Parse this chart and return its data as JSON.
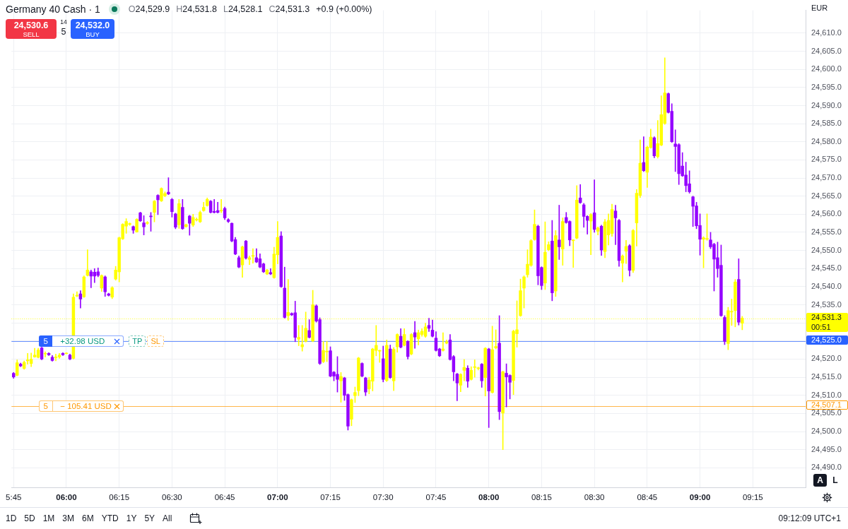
{
  "chart_data": {
    "type": "candlestick",
    "title": "Germany 40 Cash · 1",
    "annotations": [
      "O24,529.9",
      "H24,531.8",
      "L24,528.1",
      "C24,531.3",
      "+0.9 (+0.00%)",
      "24,530.6",
      "SELL",
      "14",
      "5",
      "24,532.0",
      "BUY",
      "EUR",
      {
        "text": "5",
        "y": 24525.0
      },
      {
        "text": "+32.98 USD",
        "y": 24525.0
      },
      {
        "text": "TP",
        "y": 24525.0
      },
      {
        "text": "SL",
        "y": 24525.0
      },
      {
        "text": "5",
        "y": 24507.1
      },
      {
        "text": "− 105.41 USD",
        "y": 24507.1
      },
      "00:51",
      "1D",
      "5D",
      "1M",
      "3M",
      "6M",
      "YTD",
      "1Y",
      "5Y",
      "All",
      "09:12:09 UTC+1",
      "A",
      "L"
    ],
    "x": [
      5.75,
      5.7667,
      5.7833,
      5.8,
      5.8167,
      5.8333,
      5.85,
      5.8667,
      5.8833,
      5.9,
      5.9167,
      5.9333,
      5.95,
      5.9667,
      5.9833,
      6,
      6.0167,
      6.0333,
      6.05,
      6.0667,
      6.0833,
      6.1,
      6.1167,
      6.1333,
      6.15,
      6.1667,
      6.1833,
      6.2,
      6.2167,
      6.2333,
      6.25,
      6.2667,
      6.2833,
      6.3,
      6.3167,
      6.3333,
      6.35,
      6.3667,
      6.3833,
      6.4,
      6.4167,
      6.4333,
      6.45,
      6.4667,
      6.4833,
      6.5,
      6.5167,
      6.5333,
      6.55,
      6.5667,
      6.5833,
      6.6,
      6.6167,
      6.6333,
      6.65,
      6.6667,
      6.6833,
      6.7,
      6.7167,
      6.7333,
      6.75,
      6.7667,
      6.7833,
      6.8,
      6.8167,
      6.8333,
      6.85,
      6.8667,
      6.8833,
      6.9,
      6.9167,
      6.9333,
      6.95,
      6.9667,
      6.9833,
      7,
      7.0167,
      7.0333,
      7.05,
      7.0667,
      7.0833,
      7.1,
      7.1167,
      7.1333,
      7.15,
      7.1667,
      7.1833,
      7.2,
      7.2167,
      7.2333,
      7.25,
      7.2667,
      7.2833,
      7.3,
      7.3167,
      7.3333,
      7.35,
      7.3667,
      7.3833,
      7.4,
      7.4167,
      7.4333,
      7.45,
      7.4667,
      7.4833,
      7.5,
      7.5167,
      7.5333,
      7.55,
      7.5667,
      7.5833,
      7.6,
      7.6167,
      7.6333,
      7.65,
      7.6667,
      7.6833,
      7.7,
      7.7167,
      7.7333,
      7.75,
      7.7667,
      7.7833,
      7.8,
      7.8167,
      7.8333,
      7.85,
      7.8667,
      7.8833,
      7.9,
      7.9167,
      7.9333,
      7.95,
      7.9667,
      7.9833,
      8,
      8.0167,
      8.0333,
      8.05,
      8.0667,
      8.0833,
      8.1,
      8.1167,
      8.1333,
      8.15,
      8.1667,
      8.1833,
      8.2,
      8.2167,
      8.2333,
      8.25,
      8.2667,
      8.2833,
      8.3,
      8.3167,
      8.3333,
      8.35,
      8.3667,
      8.3833,
      8.4,
      8.4167,
      8.4333,
      8.45,
      8.4667,
      8.4833,
      8.5,
      8.5167,
      8.5333,
      8.55,
      8.5667,
      8.5833,
      8.6,
      8.6167,
      8.6333,
      8.65,
      8.6667,
      8.6833,
      8.7,
      8.7167,
      8.7333,
      8.75,
      8.7667,
      8.7833,
      8.8,
      8.8167,
      8.8333,
      8.85,
      8.8667,
      8.8833,
      8.9,
      8.9167,
      8.9333,
      8.95,
      8.9667,
      8.9833,
      9,
      9.0167,
      9.0333,
      9.05,
      9.0667,
      9.0833,
      9.1,
      9.1167,
      9.1333,
      9.15,
      9.1667,
      9.1833,
      9.2
    ],
    "ohlc": [
      [
        24516.1,
        24516.3,
        24514.7,
        24515.1
      ],
      [
        24515.5,
        24519.8,
        24515.4,
        24519.0
      ],
      [
        24518.6,
        24518.9,
        24517.9,
        24518.1
      ],
      [
        24517.4,
        24519.5,
        24517.2,
        24519.1
      ],
      [
        24519.5,
        24521.6,
        24518.6,
        24519.8
      ],
      [
        24518.8,
        24521.7,
        24517.9,
        24520.0
      ],
      [
        24520.6,
        24523.0,
        24520.5,
        24521.1
      ],
      [
        24520.5,
        24523.0,
        24520.3,
        24522.5
      ],
      [
        24523.1,
        24523.3,
        24519.8,
        24520.0
      ],
      [
        24521.4,
        24522.0,
        24520.6,
        24521.5
      ],
      [
        24521.6,
        24521.8,
        24521.0,
        24521.2
      ],
      [
        24520.5,
        24521.0,
        24519.4,
        24519.6
      ],
      [
        24520.4,
        24521.4,
        24519.5,
        24520.5
      ],
      [
        24520.6,
        24521.6,
        24520.2,
        24521.1
      ],
      [
        24521.6,
        24521.8,
        24521.0,
        24521.2
      ],
      [
        24521.5,
        24521.8,
        24521.4,
        24521.6
      ],
      [
        24521.1,
        24521.4,
        24519.8,
        24520.0
      ],
      [
        24520.2,
        24538.0,
        24520.0,
        24537.1
      ],
      [
        24537.4,
        24538.6,
        24537.2,
        24537.6
      ],
      [
        24538.0,
        24538.9,
        24534.1,
        24536.6
      ],
      [
        24537.2,
        24543.0,
        24537.0,
        24542.7
      ],
      [
        24543.1,
        24550.2,
        24542.9,
        24544.6
      ],
      [
        24544.1,
        24544.6,
        24539.7,
        24542.9
      ],
      [
        24544.0,
        24545.0,
        24541.1,
        24542.9
      ],
      [
        24544.1,
        24545.2,
        24542.7,
        24543.1
      ],
      [
        24539.6,
        24543.3,
        24538.7,
        24543.1
      ],
      [
        24542.7,
        24543.0,
        24537.3,
        24538.6
      ],
      [
        24538.0,
        24538.2,
        24537.4,
        24537.6
      ],
      [
        24537.1,
        24540.0,
        24536.7,
        24539.7
      ],
      [
        24542.1,
        24545.6,
        24541.8,
        24544.6
      ],
      [
        24544.1,
        24553.7,
        24541.3,
        24553.5
      ],
      [
        24553.2,
        24557.4,
        24553.0,
        24557.2
      ],
      [
        24556.7,
        24558.8,
        24554.7,
        24558.0
      ],
      [
        24557.2,
        24557.6,
        24556.9,
        24557.3
      ],
      [
        24556.6,
        24556.8,
        24554.7,
        24555.6
      ],
      [
        24555.1,
        24558.8,
        24555.0,
        24558.6
      ],
      [
        24560.4,
        24560.6,
        24558.0,
        24558.2
      ],
      [
        24557.6,
        24559.6,
        24554.3,
        24556.5
      ],
      [
        24557.5,
        24558.0,
        24557.2,
        24557.6
      ],
      [
        24559.5,
        24560.5,
        24555.3,
        24559.3
      ],
      [
        24560.5,
        24563.8,
        24557.9,
        24563.6
      ],
      [
        24565.2,
        24565.4,
        24559.9,
        24564.0
      ],
      [
        24563.7,
        24567.3,
        24563.5,
        24567.1
      ],
      [
        24565.1,
        24566.2,
        24564.8,
        24565.7
      ],
      [
        24566.1,
        24570.1,
        24565.4,
        24565.6
      ],
      [
        24564.1,
        24564.4,
        24559.2,
        24560.7
      ],
      [
        24560.1,
        24560.3,
        24556.0,
        24556.4
      ],
      [
        24557.1,
        24564.1,
        24556.1,
        24562.9
      ],
      [
        24561.9,
        24564.1,
        24555.8,
        24556.0
      ],
      [
        24556.6,
        24557.3,
        24556.4,
        24557.1
      ],
      [
        24559.5,
        24559.7,
        24554.2,
        24557.5
      ],
      [
        24557.0,
        24560.0,
        24556.6,
        24559.1
      ],
      [
        24558.4,
        24559.0,
        24558.1,
        24558.6
      ],
      [
        24557.9,
        24560.9,
        24557.7,
        24560.5
      ],
      [
        24561.0,
        24563.3,
        24560.8,
        24561.9
      ],
      [
        24562.4,
        24564.5,
        24562.2,
        24564.1
      ],
      [
        24563.6,
        24563.8,
        24560.3,
        24560.5
      ],
      [
        24560.8,
        24564.1,
        24560.3,
        24560.5
      ],
      [
        24561.0,
        24563.3,
        24560.3,
        24560.5
      ],
      [
        24560.9,
        24564.1,
        24560.4,
        24561.0
      ],
      [
        24561.6,
        24562.0,
        24558.5,
        24559.0
      ],
      [
        24558.5,
        24558.8,
        24557.7,
        24558.0
      ],
      [
        24557.5,
        24557.6,
        24552.4,
        24552.6
      ],
      [
        24553.0,
        24553.6,
        24548.8,
        24549.0
      ],
      [
        24548.0,
        24548.5,
        24545.2,
        24545.4
      ],
      [
        24546.0,
        24551.2,
        24542.6,
        24551.0
      ],
      [
        24552.6,
        24552.8,
        24547.6,
        24547.9
      ],
      [
        24547.5,
        24548.5,
        24546.1,
        24548.0
      ],
      [
        24548.4,
        24550.5,
        24546.5,
        24548.5
      ],
      [
        24548.0,
        24550.5,
        24546.6,
        24546.8
      ],
      [
        24547.7,
        24549.1,
        24545.2,
        24545.4
      ],
      [
        24546.3,
        24546.5,
        24543.9,
        24544.1
      ],
      [
        24543.5,
        24544.8,
        24543.3,
        24544.6
      ],
      [
        24543.9,
        24545.0,
        24543.3,
        24543.5
      ],
      [
        24542.5,
        24550.9,
        24542.3,
        24549.0
      ],
      [
        24548.8,
        24558.0,
        24546.3,
        24553.6
      ],
      [
        24554.0,
        24555.2,
        24539.8,
        24540.0
      ],
      [
        24539.6,
        24545.4,
        24531.3,
        24531.5
      ],
      [
        24532.0,
        24542.0,
        24530.7,
        24532.9
      ],
      [
        24532.6,
        24532.8,
        24532.0,
        24532.2
      ],
      [
        24532.8,
        24536.0,
        24524.8,
        24526.0
      ],
      [
        24525.5,
        24529.3,
        24523.7,
        24526.0
      ],
      [
        24523.4,
        24529.3,
        24522.2,
        24524.0
      ],
      [
        24524.9,
        24533.0,
        24524.7,
        24528.5
      ],
      [
        24527.9,
        24530.9,
        24525.8,
        24526.0
      ],
      [
        24525.0,
        24539.0,
        24524.8,
        24535.0
      ],
      [
        24534.7,
        24535.0,
        24530.2,
        24530.5
      ],
      [
        24530.9,
        24531.4,
        24518.5,
        24518.8
      ],
      [
        24519.3,
        24524.9,
        24519.0,
        24522.4
      ],
      [
        24522.0,
        24524.9,
        24519.3,
        24522.1
      ],
      [
        24522.3,
        24523.4,
        24515.1,
        24515.3
      ],
      [
        24516.4,
        24516.6,
        24514.0,
        24515.3
      ],
      [
        24515.8,
        24520.7,
        24510.9,
        24514.4
      ],
      [
        24514.0,
        24516.3,
        24508.1,
        24515.2
      ],
      [
        24514.8,
        24515.0,
        24508.6,
        24510.0
      ],
      [
        24510.2,
        24510.4,
        24500.4,
        24501.5
      ],
      [
        24503.4,
        24509.0,
        24501.6,
        24508.8
      ],
      [
        24509.9,
        24512.3,
        24508.0,
        24510.8
      ],
      [
        24511.3,
        24520.5,
        24509.9,
        24520.3
      ],
      [
        24518.8,
        24519.0,
        24515.1,
        24515.3
      ],
      [
        24514.8,
        24515.0,
        24509.9,
        24510.9
      ],
      [
        24511.8,
        24515.0,
        24510.4,
        24514.2
      ],
      [
        24513.9,
        24523.0,
        24511.2,
        24522.8
      ],
      [
        24522.4,
        24529.3,
        24520.9,
        24523.8
      ],
      [
        24522.2,
        24522.5,
        24519.1,
        24522.3
      ],
      [
        24520.1,
        24523.6,
        24513.7,
        24514.4
      ],
      [
        24514.1,
        24525.3,
        24513.8,
        24523.8
      ],
      [
        24522.8,
        24523.9,
        24514.7,
        24514.9
      ],
      [
        24514.0,
        24523.2,
        24511.3,
        24522.7
      ],
      [
        24523.4,
        24527.0,
        24521.9,
        24526.8
      ],
      [
        24526.3,
        24528.4,
        24523.1,
        24523.3
      ],
      [
        24523.8,
        24528.4,
        24523.6,
        24526.8
      ],
      [
        24524.9,
        24525.1,
        24520.0,
        24520.7
      ],
      [
        24521.4,
        24527.1,
        24521.2,
        24526.8
      ],
      [
        24527.3,
        24530.4,
        24523.0,
        24526.1
      ],
      [
        24525.6,
        24528.0,
        24523.9,
        24527.3
      ],
      [
        24526.8,
        24528.4,
        24526.3,
        24527.7
      ],
      [
        24526.3,
        24529.9,
        24526.0,
        24528.9
      ],
      [
        24529.3,
        24531.3,
        24527.6,
        24528.5
      ],
      [
        24528.0,
        24530.8,
        24526.1,
        24526.3
      ],
      [
        24525.8,
        24527.6,
        24522.2,
        24522.4
      ],
      [
        24522.8,
        24523.0,
        24520.7,
        24520.9
      ],
      [
        24522.4,
        24527.3,
        24522.2,
        24522.8
      ],
      [
        24524.4,
        24525.3,
        24524.2,
        24524.8
      ],
      [
        24525.3,
        24526.8,
        24519.7,
        24519.9
      ],
      [
        24520.7,
        24521.0,
        24514.0,
        24516.5
      ],
      [
        24515.9,
        24516.1,
        24508.5,
        24513.4
      ],
      [
        24512.8,
        24516.0,
        24511.0,
        24515.8
      ],
      [
        24516.9,
        24519.9,
        24514.0,
        24517.7
      ],
      [
        24517.5,
        24518.2,
        24512.2,
        24513.9
      ],
      [
        24514.4,
        24517.9,
        24514.2,
        24516.9
      ],
      [
        24517.7,
        24519.8,
        24515.0,
        24517.8
      ],
      [
        24517.4,
        24517.8,
        24517.0,
        24517.5
      ],
      [
        24518.6,
        24518.8,
        24512.2,
        24514.0
      ],
      [
        24514.9,
        24523.2,
        24509.8,
        24523.0
      ],
      [
        24522.8,
        24523.0,
        24501.1,
        24511.2
      ],
      [
        24510.8,
        24529.1,
        24510.6,
        24522.6
      ],
      [
        24523.1,
        24528.1,
        24522.8,
        24523.5
      ],
      [
        24524.4,
        24532.0,
        24503.3,
        24505.5
      ],
      [
        24505.1,
        24516.7,
        24495.0,
        24516.5
      ],
      [
        24516.1,
        24518.7,
        24506.8,
        24515.1
      ],
      [
        24515.5,
        24515.7,
        24509.0,
        24513.6
      ],
      [
        24514.1,
        24528.0,
        24510.2,
        24527.7
      ],
      [
        24527.0,
        24536.1,
        24523.3,
        24528.1
      ],
      [
        24532.0,
        24542.1,
        24531.8,
        24538.9
      ],
      [
        24539.6,
        24543.0,
        24534.1,
        24542.7
      ],
      [
        24543.3,
        24550.2,
        24542.6,
        24546.2
      ],
      [
        24545.9,
        24553.0,
        24545.6,
        24552.7
      ],
      [
        24553.0,
        24561.2,
        24552.8,
        24557.2
      ],
      [
        24556.7,
        24557.0,
        24540.5,
        24543.0
      ],
      [
        24545.3,
        24545.5,
        24539.2,
        24540.3
      ],
      [
        24541.0,
        24557.9,
        24539.2,
        24549.5
      ],
      [
        24550.2,
        24552.4,
        24549.9,
        24551.6
      ],
      [
        24552.6,
        24558.3,
        24536.1,
        24538.3
      ],
      [
        24538.8,
        24555.5,
        24537.3,
        24554.1
      ],
      [
        24552.9,
        24562.5,
        24547.5,
        24551.0
      ],
      [
        24550.4,
        24559.0,
        24545.9,
        24558.0
      ],
      [
        24559.1,
        24560.5,
        24557.5,
        24557.7
      ],
      [
        24558.0,
        24558.2,
        24551.3,
        24552.9
      ],
      [
        24552.7,
        24553.0,
        24545.3,
        24552.8
      ],
      [
        24553.4,
        24567.9,
        24553.2,
        24563.9
      ],
      [
        24564.5,
        24568.2,
        24563.0,
        24563.2
      ],
      [
        24562.6,
        24563.0,
        24556.4,
        24559.4
      ],
      [
        24559.4,
        24559.6,
        24554.5,
        24558.3
      ],
      [
        24558.1,
        24560.2,
        24548.8,
        24559.9
      ],
      [
        24560.4,
        24569.5,
        24555.0,
        24555.8
      ],
      [
        24555.3,
        24556.5,
        24554.3,
        24556.2
      ],
      [
        24556.7,
        24557.0,
        24548.6,
        24550.1
      ],
      [
        24549.7,
        24558.6,
        24548.0,
        24557.9
      ],
      [
        24554.3,
        24560.1,
        24551.5,
        24558.3
      ],
      [
        24554.7,
        24562.8,
        24553.9,
        24561.3
      ],
      [
        24560.9,
        24562.5,
        24551.6,
        24559.0
      ],
      [
        24558.3,
        24558.6,
        24545.6,
        24547.2
      ],
      [
        24546.5,
        24548.8,
        24541.3,
        24548.5
      ],
      [
        24549.8,
        24552.8,
        24546.4,
        24551.1
      ],
      [
        24551.3,
        24551.6,
        24542.9,
        24544.5
      ],
      [
        24544.5,
        24555.8,
        24543.9,
        24555.5
      ],
      [
        24557.6,
        24566.8,
        24551.2,
        24565.8
      ],
      [
        24565.2,
        24580.5,
        24564.6,
        24574.1
      ],
      [
        24574.3,
        24581.4,
        24571.8,
        24572.0
      ],
      [
        24571.6,
        24578.8,
        24567.4,
        24578.5
      ],
      [
        24578.4,
        24583.5,
        24578.2,
        24581.3
      ],
      [
        24581.1,
        24581.4,
        24575.6,
        24576.1
      ],
      [
        24575.9,
        24585.9,
        24575.5,
        24579.5
      ],
      [
        24579.1,
        24592.7,
        24578.9,
        24587.5
      ],
      [
        24585.1,
        24603.2,
        24584.8,
        24593.5
      ],
      [
        24593.3,
        24593.5,
        24587.9,
        24588.1
      ],
      [
        24588.4,
        24590.5,
        24579.8,
        24580.0
      ],
      [
        24579.4,
        24583.3,
        24571.8,
        24578.7
      ],
      [
        24579.2,
        24579.5,
        24568.2,
        24571.2
      ],
      [
        24573.3,
        24577.0,
        24570.4,
        24570.6
      ],
      [
        24570.8,
        24574.4,
        24566.2,
        24567.9
      ],
      [
        24568.4,
        24572.0,
        24565.8,
        24566.2
      ],
      [
        24564.8,
        24565.0,
        24556.6,
        24562.2
      ],
      [
        24562.3,
        24563.3,
        24556.0,
        24556.8
      ],
      [
        24556.9,
        24560.1,
        24548.7,
        24553.1
      ],
      [
        24553.1,
        24553.8,
        24545.2,
        24553.5
      ],
      [
        24553.1,
        24560.1,
        24552.8,
        24553.2
      ],
      [
        24552.9,
        24555.0,
        24550.5,
        24551.0
      ],
      [
        24551.7,
        24552.0,
        24538.8,
        24547.6
      ],
      [
        24548.0,
        24552.3,
        24542.6,
        24545.0
      ],
      [
        24545.9,
        24551.5,
        24531.8,
        24532.0
      ],
      [
        24531.5,
        24532.0,
        24524.0,
        24524.9
      ],
      [
        24524.3,
        24534.3,
        24522.6,
        24533.4
      ],
      [
        24533.0,
        24536.6,
        24529.3,
        24533.1
      ],
      [
        24533.4,
        24542.0,
        24528.9,
        24541.3
      ],
      [
        24542.0,
        24547.7,
        24529.4,
        24530.2
      ],
      [
        24529.9,
        24531.8,
        24528.1,
        24531.3
      ]
    ],
    "colors": [
      "#9400ff",
      "#ffff00",
      "#9400ff",
      "#ffff00",
      "#ffff00",
      "#ffff00",
      "#ffff00",
      "#ffff00",
      "#9400ff",
      "#ffff00",
      "#9400ff",
      "#9400ff",
      "#ffff00",
      "#ffff00",
      "#9400ff",
      "#ffff00",
      "#9400ff",
      "#ffff00",
      "#ffff00",
      "#9400ff",
      "#ffff00",
      "#ffff00",
      "#9400ff",
      "#9400ff",
      "#9400ff",
      "#ffff00",
      "#9400ff",
      "#9400ff",
      "#ffff00",
      "#ffff00",
      "#ffff00",
      "#ffff00",
      "#ffff00",
      "#ffff00",
      "#9400ff",
      "#ffff00",
      "#9400ff",
      "#9400ff",
      "#ffff00",
      "#9400ff",
      "#ffff00",
      "#9400ff",
      "#ffff00",
      "#ffff00",
      "#9400ff",
      "#9400ff",
      "#9400ff",
      "#ffff00",
      "#9400ff",
      "#ffff00",
      "#9400ff",
      "#ffff00",
      "#ffff00",
      "#ffff00",
      "#ffff00",
      "#ffff00",
      "#9400ff",
      "#9400ff",
      "#9400ff",
      "#ffff00",
      "#9400ff",
      "#9400ff",
      "#9400ff",
      "#9400ff",
      "#9400ff",
      "#ffff00",
      "#9400ff",
      "#ffff00",
      "#ffff00",
      "#9400ff",
      "#9400ff",
      "#9400ff",
      "#ffff00",
      "#9400ff",
      "#ffff00",
      "#ffff00",
      "#9400ff",
      "#9400ff",
      "#ffff00",
      "#9400ff",
      "#9400ff",
      "#ffff00",
      "#ffff00",
      "#ffff00",
      "#9400ff",
      "#ffff00",
      "#9400ff",
      "#9400ff",
      "#ffff00",
      "#ffff00",
      "#9400ff",
      "#9400ff",
      "#9400ff",
      "#ffff00",
      "#9400ff",
      "#9400ff",
      "#ffff00",
      "#ffff00",
      "#ffff00",
      "#9400ff",
      "#9400ff",
      "#ffff00",
      "#ffff00",
      "#ffff00",
      "#ffff00",
      "#9400ff",
      "#ffff00",
      "#9400ff",
      "#ffff00",
      "#ffff00",
      "#9400ff",
      "#ffff00",
      "#9400ff",
      "#ffff00",
      "#9400ff",
      "#ffff00",
      "#ffff00",
      "#ffff00",
      "#9400ff",
      "#9400ff",
      "#9400ff",
      "#9400ff",
      "#ffff00",
      "#ffff00",
      "#9400ff",
      "#9400ff",
      "#9400ff",
      "#ffff00",
      "#ffff00",
      "#9400ff",
      "#ffff00",
      "#ffff00",
      "#ffff00",
      "#9400ff",
      "#ffff00",
      "#9400ff",
      "#ffff00",
      "#ffff00",
      "#9400ff",
      "#ffff00",
      "#9400ff",
      "#9400ff",
      "#ffff00",
      "#ffff00",
      "#ffff00",
      "#ffff00",
      "#ffff00",
      "#ffff00",
      "#ffff00",
      "#9400ff",
      "#9400ff",
      "#ffff00",
      "#ffff00",
      "#9400ff",
      "#ffff00",
      "#9400ff",
      "#ffff00",
      "#9400ff",
      "#9400ff",
      "#ffff00",
      "#ffff00",
      "#9400ff",
      "#9400ff",
      "#9400ff",
      "#ffff00",
      "#9400ff",
      "#ffff00",
      "#9400ff",
      "#ffff00",
      "#ffff00",
      "#ffff00",
      "#9400ff",
      "#9400ff",
      "#ffff00",
      "#ffff00",
      "#9400ff",
      "#ffff00",
      "#ffff00",
      "#ffff00",
      "#9400ff",
      "#ffff00",
      "#ffff00",
      "#9400ff",
      "#ffff00",
      "#ffff00",
      "#ffff00",
      "#9400ff",
      "#9400ff",
      "#9400ff",
      "#9400ff",
      "#9400ff",
      "#9400ff",
      "#9400ff",
      "#9400ff",
      "#9400ff",
      "#9400ff",
      "#ffff00",
      "#ffff00",
      "#9400ff",
      "#9400ff",
      "#9400ff",
      "#9400ff",
      "#9400ff",
      "#ffff00",
      "#ffff00",
      "#ffff00",
      "#9400ff",
      "#ffff00"
    ],
    "xlim": [
      5.74,
      9.5
    ],
    "xticks": [
      {
        "value": 5.75,
        "label": "5:45"
      },
      {
        "value": 6,
        "label": "06:00"
      },
      {
        "value": 6.25,
        "label": "06:15"
      },
      {
        "value": 6.5,
        "label": "06:30"
      },
      {
        "value": 6.75,
        "label": "06:45"
      },
      {
        "value": 7,
        "label": "07:00"
      },
      {
        "value": 7.25,
        "label": "07:15"
      },
      {
        "value": 7.5,
        "label": "07:30"
      },
      {
        "value": 7.75,
        "label": "07:45"
      },
      {
        "value": 8,
        "label": "08:00"
      },
      {
        "value": 8.25,
        "label": "08:15"
      },
      {
        "value": 8.5,
        "label": "08:30"
      },
      {
        "value": 8.75,
        "label": "08:45"
      },
      {
        "value": 9,
        "label": "09:00"
      },
      {
        "value": 9.25,
        "label": "09:15"
      }
    ],
    "ylim": [
      24484.6,
      24616.3
    ],
    "yticks": [
      {
        "value": 24490,
        "label": "24,490.0"
      },
      {
        "value": 24495,
        "label": "24,495.0"
      },
      {
        "value": 24500,
        "label": "24,500.0"
      },
      {
        "value": 24505,
        "label": "24,505.0"
      },
      {
        "value": 24510,
        "label": "24,510.0"
      },
      {
        "value": 24515,
        "label": "24,515.0"
      },
      {
        "value": 24520,
        "label": "24,520.0"
      },
      {
        "value": 24525,
        "label": null
      },
      {
        "value": 24530,
        "label": null
      },
      {
        "value": 24535,
        "label": "24,535.0"
      },
      {
        "value": 24540,
        "label": "24,540.0"
      },
      {
        "value": 24545,
        "label": "24,545.0"
      },
      {
        "value": 24550,
        "label": "24,550.0"
      },
      {
        "value": 24555,
        "label": "24,555.0"
      },
      {
        "value": 24560,
        "label": "24,560.0"
      },
      {
        "value": 24565,
        "label": "24,565.0"
      },
      {
        "value": 24570,
        "label": "24,570.0"
      },
      {
        "value": 24575,
        "label": "24,575.0"
      },
      {
        "value": 24580,
        "label": "24,580.0"
      },
      {
        "value": 24585,
        "label": "24,585.0"
      },
      {
        "value": 24590,
        "label": "24,590.0"
      },
      {
        "value": 24595,
        "label": "24,595.0"
      },
      {
        "value": 24600,
        "label": "24,600.0"
      },
      {
        "value": 24605,
        "label": "24,605.0"
      },
      {
        "value": 24610,
        "label": "24,610.0"
      }
    ],
    "ref_lines": [
      {
        "axis": "y",
        "value": 24531.3,
        "label": "24,531.3",
        "color": "#ffff00",
        "line_style": "dotted"
      },
      {
        "axis": "y",
        "value": 24525.0,
        "label": "24,525.0",
        "color": "#2962ff"
      },
      {
        "axis": "y",
        "value": 24507.1,
        "label": "24,507.1",
        "color": "#ff9800"
      }
    ],
    "grid": true
  }
}
